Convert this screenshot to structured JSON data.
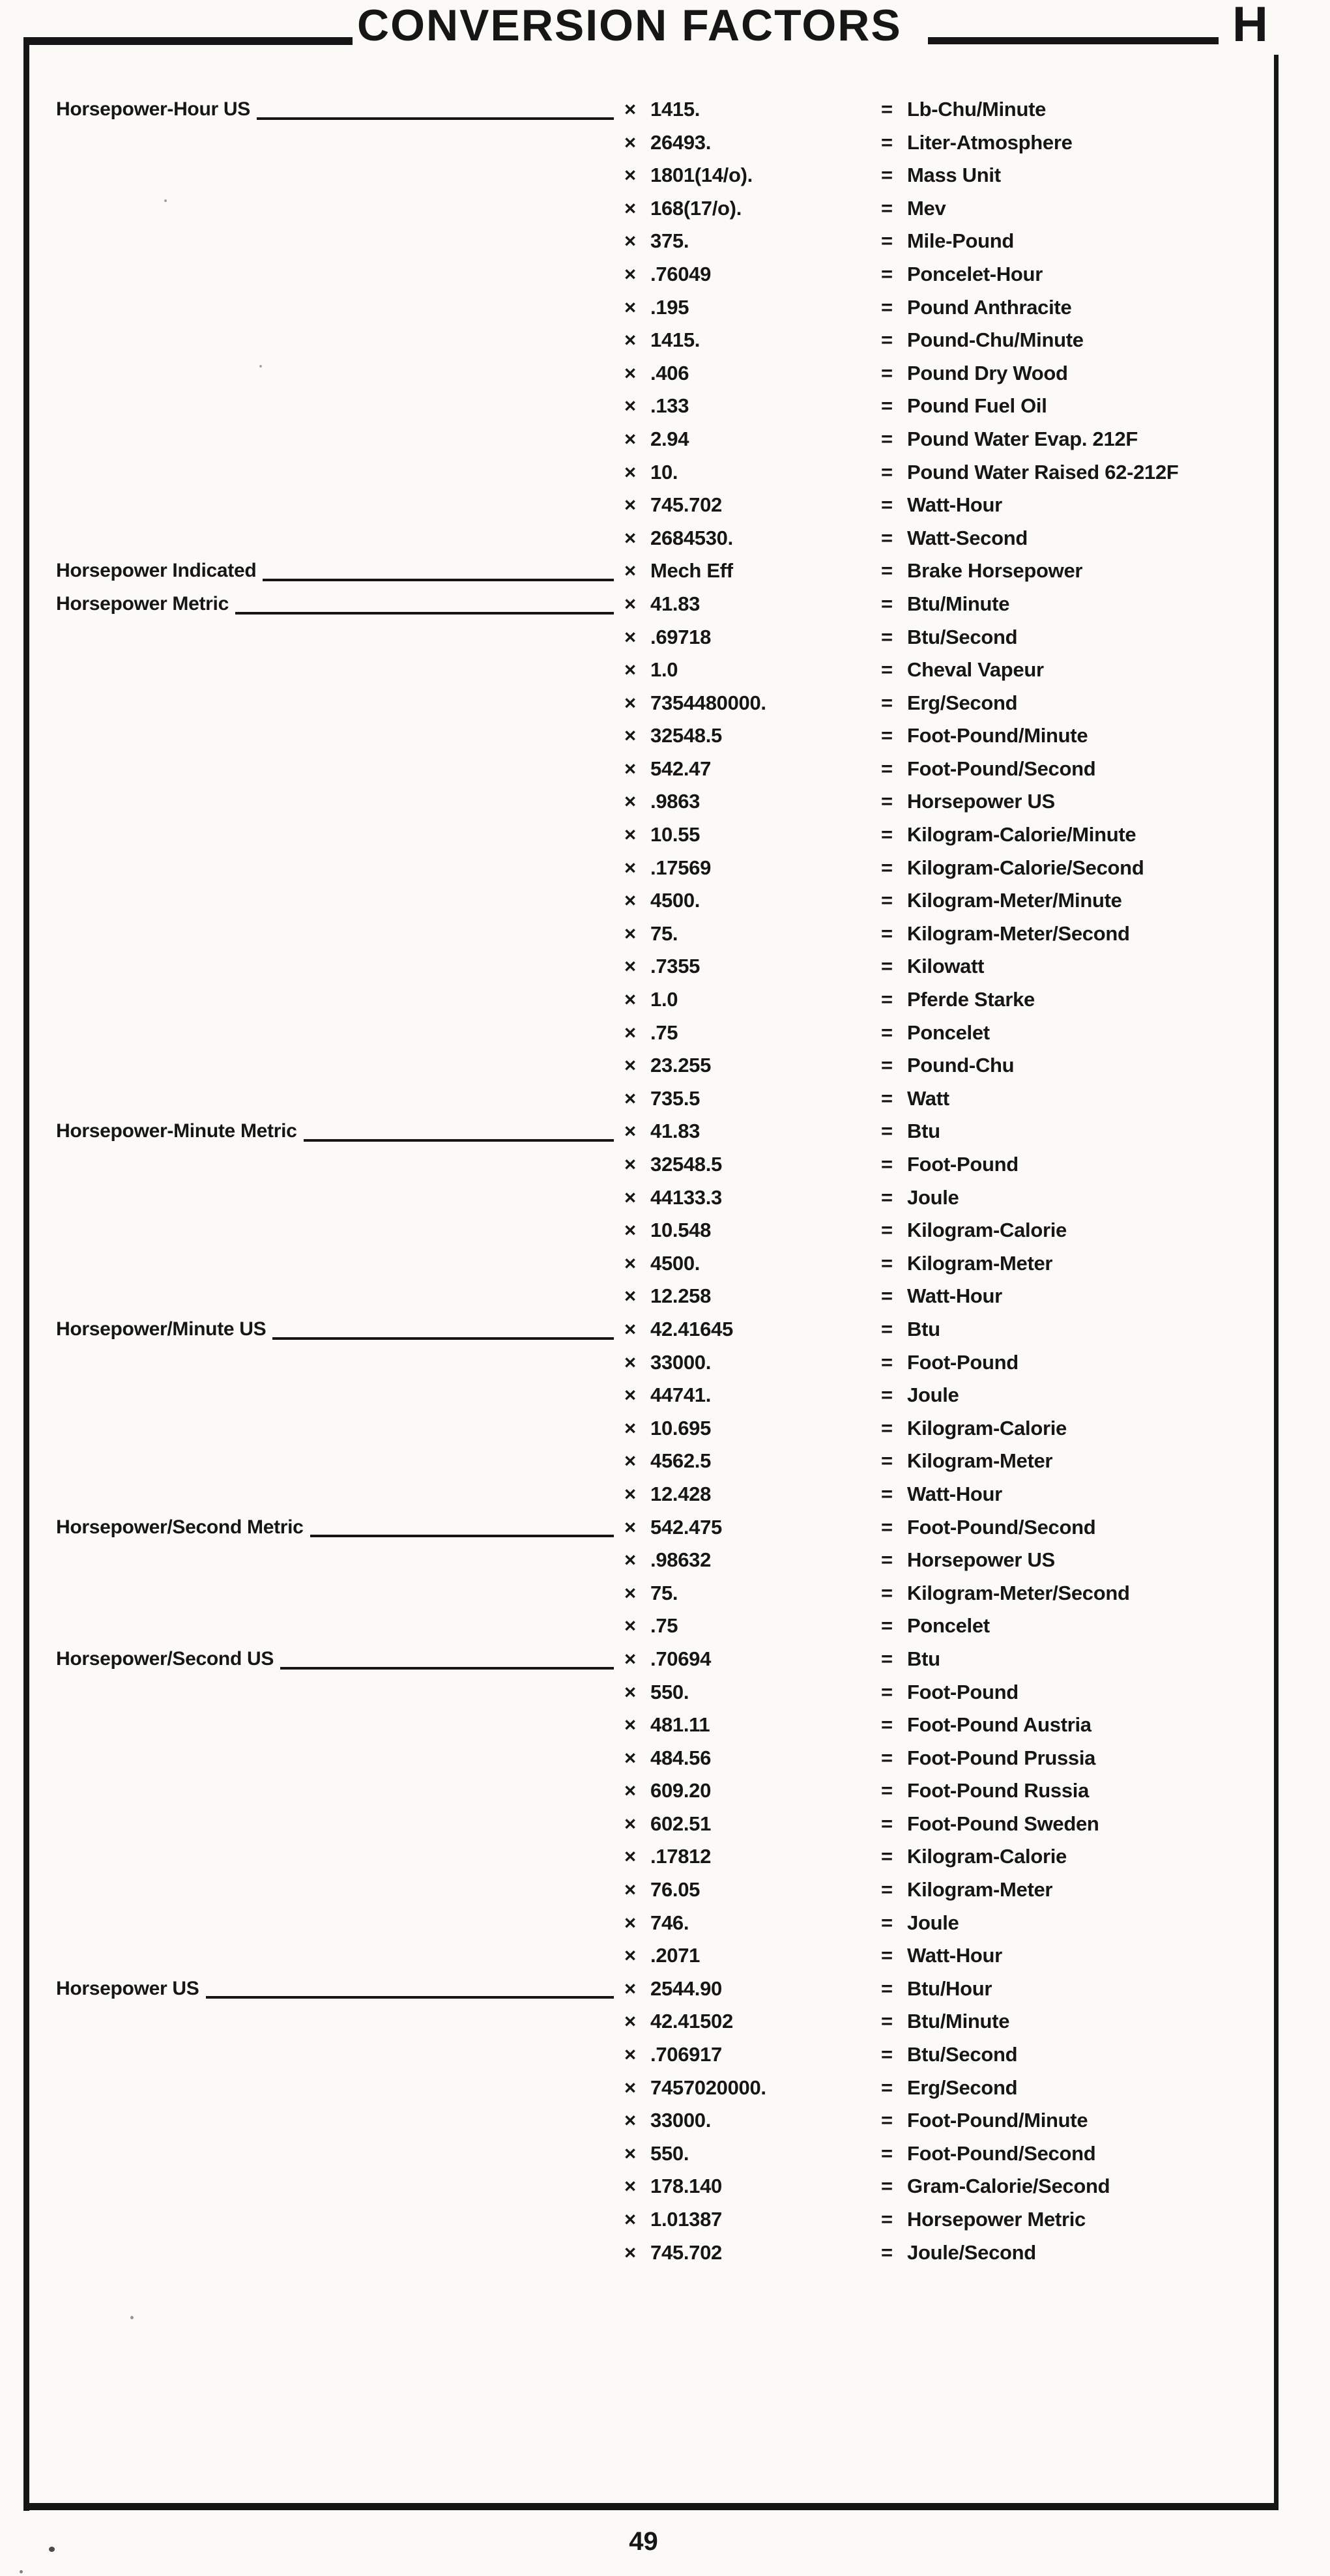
{
  "page": {
    "title": "CONVERSION FACTORS",
    "tab_letter": "H",
    "page_number": "49",
    "ink_color": "#161616",
    "paper_color": "#fbfaf6"
  },
  "table": {
    "multiply_symbol": "×",
    "equals_symbol": "=",
    "rows": [
      {
        "label": "Horsepower-Hour US",
        "factor": "1415.",
        "unit": "Lb-Chu/Minute"
      },
      {
        "label": "",
        "factor": "26493.",
        "unit": "Liter-Atmosphere"
      },
      {
        "label": "",
        "factor": "1801(14/o).",
        "unit": "Mass Unit"
      },
      {
        "label": "",
        "factor": "168(17/o).",
        "unit": "Mev"
      },
      {
        "label": "",
        "factor": "375.",
        "unit": "Mile-Pound"
      },
      {
        "label": "",
        "factor": ".76049",
        "unit": "Poncelet-Hour"
      },
      {
        "label": "",
        "factor": ".195",
        "unit": "Pound Anthracite"
      },
      {
        "label": "",
        "factor": "1415.",
        "unit": "Pound-Chu/Minute"
      },
      {
        "label": "",
        "factor": ".406",
        "unit": "Pound Dry Wood"
      },
      {
        "label": "",
        "factor": ".133",
        "unit": "Pound Fuel Oil"
      },
      {
        "label": "",
        "factor": "2.94",
        "unit": "Pound Water Evap. 212F"
      },
      {
        "label": "",
        "factor": "10.",
        "unit": "Pound Water Raised 62-212F"
      },
      {
        "label": "",
        "factor": "745.702",
        "unit": "Watt-Hour"
      },
      {
        "label": "",
        "factor": "2684530.",
        "unit": "Watt-Second"
      },
      {
        "label": "Horsepower Indicated",
        "factor": "Mech Eff",
        "unit": "Brake Horsepower"
      },
      {
        "label": "Horsepower Metric",
        "factor": "41.83",
        "unit": "Btu/Minute"
      },
      {
        "label": "",
        "factor": ".69718",
        "unit": "Btu/Second"
      },
      {
        "label": "",
        "factor": "1.0",
        "unit": "Cheval Vapeur"
      },
      {
        "label": "",
        "factor": "7354480000.",
        "unit": "Erg/Second"
      },
      {
        "label": "",
        "factor": "32548.5",
        "unit": "Foot-Pound/Minute"
      },
      {
        "label": "",
        "factor": "542.47",
        "unit": "Foot-Pound/Second"
      },
      {
        "label": "",
        "factor": ".9863",
        "unit": "Horsepower US"
      },
      {
        "label": "",
        "factor": "10.55",
        "unit": "Kilogram-Calorie/Minute"
      },
      {
        "label": "",
        "factor": ".17569",
        "unit": "Kilogram-Calorie/Second"
      },
      {
        "label": "",
        "factor": "4500.",
        "unit": "Kilogram-Meter/Minute"
      },
      {
        "label": "",
        "factor": "75.",
        "unit": "Kilogram-Meter/Second"
      },
      {
        "label": "",
        "factor": ".7355",
        "unit": "Kilowatt"
      },
      {
        "label": "",
        "factor": "1.0",
        "unit": "Pferde Starke"
      },
      {
        "label": "",
        "factor": ".75",
        "unit": "Poncelet"
      },
      {
        "label": "",
        "factor": "23.255",
        "unit": "Pound-Chu"
      },
      {
        "label": "",
        "factor": "735.5",
        "unit": "Watt"
      },
      {
        "label": "Horsepower-Minute Metric",
        "factor": "41.83",
        "unit": "Btu"
      },
      {
        "label": "",
        "factor": "32548.5",
        "unit": "Foot-Pound"
      },
      {
        "label": "",
        "factor": "44133.3",
        "unit": "Joule"
      },
      {
        "label": "",
        "factor": "10.548",
        "unit": "Kilogram-Calorie"
      },
      {
        "label": "",
        "factor": "4500.",
        "unit": "Kilogram-Meter"
      },
      {
        "label": "",
        "factor": "12.258",
        "unit": "Watt-Hour"
      },
      {
        "label": "Horsepower/Minute US",
        "factor": "42.41645",
        "unit": "Btu"
      },
      {
        "label": "",
        "factor": "33000.",
        "unit": "Foot-Pound"
      },
      {
        "label": "",
        "factor": "44741.",
        "unit": "Joule"
      },
      {
        "label": "",
        "factor": "10.695",
        "unit": "Kilogram-Calorie"
      },
      {
        "label": "",
        "factor": "4562.5",
        "unit": "Kilogram-Meter"
      },
      {
        "label": "",
        "factor": "12.428",
        "unit": "Watt-Hour"
      },
      {
        "label": "Horsepower/Second Metric",
        "factor": "542.475",
        "unit": "Foot-Pound/Second"
      },
      {
        "label": "",
        "factor": ".98632",
        "unit": "Horsepower US"
      },
      {
        "label": "",
        "factor": "75.",
        "unit": "Kilogram-Meter/Second"
      },
      {
        "label": "",
        "factor": ".75",
        "unit": "Poncelet"
      },
      {
        "label": "Horsepower/Second US",
        "factor": ".70694",
        "unit": "Btu"
      },
      {
        "label": "",
        "factor": "550.",
        "unit": "Foot-Pound"
      },
      {
        "label": "",
        "factor": "481.11",
        "unit": "Foot-Pound Austria"
      },
      {
        "label": "",
        "factor": "484.56",
        "unit": "Foot-Pound Prussia"
      },
      {
        "label": "",
        "factor": "609.20",
        "unit": "Foot-Pound Russia"
      },
      {
        "label": "",
        "factor": "602.51",
        "unit": "Foot-Pound Sweden"
      },
      {
        "label": "",
        "factor": ".17812",
        "unit": "Kilogram-Calorie"
      },
      {
        "label": "",
        "factor": "76.05",
        "unit": "Kilogram-Meter"
      },
      {
        "label": "",
        "factor": "746.",
        "unit": "Joule"
      },
      {
        "label": "",
        "factor": ".2071",
        "unit": "Watt-Hour"
      },
      {
        "label": "Horsepower US",
        "factor": "2544.90",
        "unit": "Btu/Hour"
      },
      {
        "label": "",
        "factor": "42.41502",
        "unit": "Btu/Minute"
      },
      {
        "label": "",
        "factor": ".706917",
        "unit": "Btu/Second"
      },
      {
        "label": "",
        "factor": "7457020000.",
        "unit": "Erg/Second"
      },
      {
        "label": "",
        "factor": "33000.",
        "unit": "Foot-Pound/Minute"
      },
      {
        "label": "",
        "factor": "550.",
        "unit": "Foot-Pound/Second"
      },
      {
        "label": "",
        "factor": "178.140",
        "unit": "Gram-Calorie/Second"
      },
      {
        "label": "",
        "factor": "1.01387",
        "unit": "Horsepower Metric"
      },
      {
        "label": "",
        "factor": "745.702",
        "unit": "Joule/Second"
      }
    ]
  }
}
